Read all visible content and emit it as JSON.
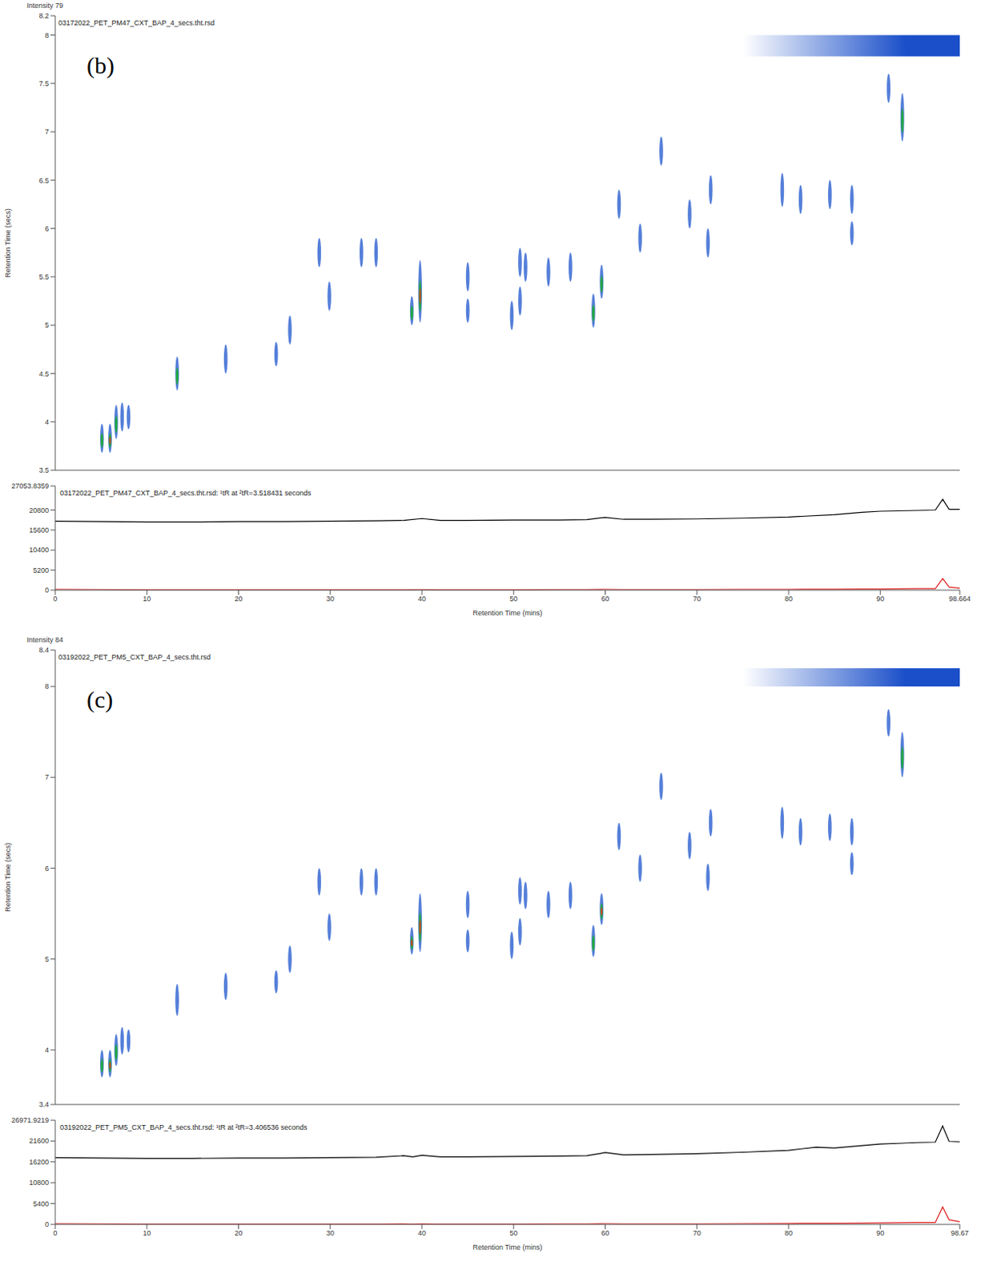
{
  "chart_data": [
    {
      "type": "contour",
      "panel": "(b)",
      "header": "Intensity 79",
      "title": "03172022_PET_PM47_CXT_BAP_4_secs.tht.rsd",
      "y_label": "Retention Time (secs)",
      "xlim": [
        0,
        98.664
      ],
      "ylim": [
        3.5,
        8.2
      ],
      "xticks": [
        0,
        10,
        20,
        30,
        40,
        50,
        60,
        70,
        80,
        90,
        98.664
      ],
      "yticks": [
        3.5,
        4,
        4.5,
        5,
        5.5,
        6,
        6.5,
        7,
        7.5,
        8,
        8.2
      ],
      "tick_labels": "y",
      "bleed": {
        "x": [
          75,
          98.664
        ],
        "y": [
          7.78,
          8.0
        ]
      },
      "peaks": [
        {
          "x": 5.1,
          "y": 3.83,
          "dy": 0.3,
          "intensity": 2
        },
        {
          "x": 5.98,
          "y": 3.83,
          "dy": 0.3,
          "intensity": 3
        },
        {
          "x": 6.65,
          "y": 4.0,
          "dy": 0.35,
          "intensity": 2
        },
        {
          "x": 7.3,
          "y": 4.05,
          "dy": 0.3,
          "intensity": 1
        },
        {
          "x": 8.0,
          "y": 4.05,
          "dy": 0.25,
          "intensity": 1
        },
        {
          "x": 13.3,
          "y": 4.5,
          "dy": 0.35,
          "intensity": 2
        },
        {
          "x": 18.6,
          "y": 4.65,
          "dy": 0.3,
          "intensity": 1
        },
        {
          "x": 24.1,
          "y": 4.7,
          "dy": 0.25,
          "intensity": 1
        },
        {
          "x": 25.6,
          "y": 4.95,
          "dy": 0.3,
          "intensity": 1
        },
        {
          "x": 28.8,
          "y": 5.75,
          "dy": 0.3,
          "intensity": 1
        },
        {
          "x": 29.9,
          "y": 5.3,
          "dy": 0.3,
          "intensity": 1
        },
        {
          "x": 33.4,
          "y": 5.75,
          "dy": 0.3,
          "intensity": 1
        },
        {
          "x": 35.0,
          "y": 5.75,
          "dy": 0.3,
          "intensity": 1
        },
        {
          "x": 38.9,
          "y": 5.15,
          "dy": 0.3,
          "intensity": 2
        },
        {
          "x": 39.8,
          "y": 5.35,
          "dy": 0.65,
          "intensity": 3
        },
        {
          "x": 45.0,
          "y": 5.5,
          "dy": 0.3,
          "intensity": 1
        },
        {
          "x": 45.0,
          "y": 5.15,
          "dy": 0.25,
          "intensity": 1
        },
        {
          "x": 49.8,
          "y": 5.1,
          "dy": 0.3,
          "intensity": 1
        },
        {
          "x": 50.7,
          "y": 5.25,
          "dy": 0.3,
          "intensity": 1
        },
        {
          "x": 50.7,
          "y": 5.65,
          "dy": 0.3,
          "intensity": 1
        },
        {
          "x": 51.3,
          "y": 5.6,
          "dy": 0.3,
          "intensity": 1
        },
        {
          "x": 53.8,
          "y": 5.55,
          "dy": 0.3,
          "intensity": 1
        },
        {
          "x": 56.2,
          "y": 5.6,
          "dy": 0.3,
          "intensity": 1
        },
        {
          "x": 58.7,
          "y": 5.15,
          "dy": 0.35,
          "intensity": 2
        },
        {
          "x": 59.6,
          "y": 5.45,
          "dy": 0.35,
          "intensity": 2
        },
        {
          "x": 61.5,
          "y": 6.25,
          "dy": 0.3,
          "intensity": 1
        },
        {
          "x": 63.8,
          "y": 5.9,
          "dy": 0.3,
          "intensity": 1
        },
        {
          "x": 66.1,
          "y": 6.8,
          "dy": 0.3,
          "intensity": 1
        },
        {
          "x": 69.2,
          "y": 6.15,
          "dy": 0.3,
          "intensity": 1
        },
        {
          "x": 71.2,
          "y": 5.85,
          "dy": 0.3,
          "intensity": 1
        },
        {
          "x": 71.5,
          "y": 6.4,
          "dy": 0.3,
          "intensity": 1
        },
        {
          "x": 79.3,
          "y": 6.4,
          "dy": 0.35,
          "intensity": 1
        },
        {
          "x": 81.3,
          "y": 6.3,
          "dy": 0.3,
          "intensity": 1
        },
        {
          "x": 84.5,
          "y": 6.35,
          "dy": 0.3,
          "intensity": 1
        },
        {
          "x": 86.9,
          "y": 6.3,
          "dy": 0.3,
          "intensity": 1
        },
        {
          "x": 86.9,
          "y": 5.95,
          "dy": 0.25,
          "intensity": 1
        },
        {
          "x": 90.9,
          "y": 7.45,
          "dy": 0.3,
          "intensity": 1
        },
        {
          "x": 92.4,
          "y": 7.15,
          "dy": 0.5,
          "intensity": 2
        }
      ]
    },
    {
      "type": "line",
      "title": "03172022_PET_PM47_CXT_BAP_4_secs.tht.rsd: ¹tR at ²tR=3.518431 seconds",
      "x_label": "Retention Time (mins)",
      "xlim": [
        0,
        98.664
      ],
      "ylim": [
        0,
        27053.8359
      ],
      "xticks": [
        0,
        10,
        20,
        30,
        40,
        50,
        60,
        70,
        80,
        90,
        98.664
      ],
      "yticks": [
        0,
        5200,
        10400,
        15600,
        20800,
        27053.8359
      ],
      "x": [
        0,
        5,
        10,
        15,
        20,
        25,
        30,
        35,
        38,
        40,
        42,
        45,
        50,
        55,
        58,
        60,
        62,
        65,
        70,
        75,
        80,
        85,
        88,
        90,
        92,
        94,
        96,
        96.8,
        97.5,
        98.664
      ],
      "series": [
        {
          "color": "#000000",
          "values": [
            17900,
            17800,
            17700,
            17700,
            17800,
            17800,
            17900,
            18000,
            18100,
            18600,
            18100,
            18100,
            18200,
            18200,
            18300,
            18900,
            18400,
            18400,
            18500,
            18700,
            19000,
            19600,
            20200,
            20500,
            20600,
            20700,
            20800,
            23600,
            21000,
            21000
          ]
        },
        {
          "color": "#e02020",
          "values": [
            200,
            150,
            100,
            100,
            100,
            100,
            100,
            100,
            100,
            150,
            100,
            100,
            100,
            150,
            150,
            200,
            150,
            150,
            150,
            200,
            200,
            250,
            300,
            300,
            350,
            400,
            400,
            3000,
            800,
            500
          ]
        }
      ]
    },
    {
      "type": "contour",
      "panel": "(c)",
      "header": "Intensity 84",
      "title": "03192022_PET_PM5_CXT_BAP_4_secs.tht.rsd",
      "y_label": "Retention Time (secs)",
      "xlim": [
        0,
        98.67
      ],
      "ylim": [
        3.4,
        8.4
      ],
      "xticks": [
        0,
        10,
        20,
        30,
        40,
        50,
        60,
        70,
        80,
        90,
        98.67
      ],
      "yticks": [
        3.4,
        4,
        5,
        6,
        7,
        8,
        8.4
      ],
      "tick_labels": "y",
      "bleed": {
        "x": [
          75,
          98.67
        ],
        "y": [
          8.0,
          8.2
        ]
      },
      "peaks": [
        {
          "x": 5.1,
          "y": 3.85,
          "dy": 0.3,
          "intensity": 2
        },
        {
          "x": 5.98,
          "y": 3.85,
          "dy": 0.3,
          "intensity": 3
        },
        {
          "x": 6.65,
          "y": 4.0,
          "dy": 0.35,
          "intensity": 2
        },
        {
          "x": 7.3,
          "y": 4.1,
          "dy": 0.3,
          "intensity": 1
        },
        {
          "x": 8.0,
          "y": 4.1,
          "dy": 0.25,
          "intensity": 1
        },
        {
          "x": 13.3,
          "y": 4.55,
          "dy": 0.35,
          "intensity": 1
        },
        {
          "x": 18.6,
          "y": 4.7,
          "dy": 0.3,
          "intensity": 1
        },
        {
          "x": 24.1,
          "y": 4.75,
          "dy": 0.25,
          "intensity": 1
        },
        {
          "x": 25.6,
          "y": 5.0,
          "dy": 0.3,
          "intensity": 1
        },
        {
          "x": 28.8,
          "y": 5.85,
          "dy": 0.3,
          "intensity": 1
        },
        {
          "x": 29.9,
          "y": 5.35,
          "dy": 0.3,
          "intensity": 1
        },
        {
          "x": 33.4,
          "y": 5.85,
          "dy": 0.3,
          "intensity": 1
        },
        {
          "x": 35.0,
          "y": 5.85,
          "dy": 0.3,
          "intensity": 1
        },
        {
          "x": 38.9,
          "y": 5.2,
          "dy": 0.3,
          "intensity": 3
        },
        {
          "x": 39.8,
          "y": 5.4,
          "dy": 0.65,
          "intensity": 3
        },
        {
          "x": 45.0,
          "y": 5.6,
          "dy": 0.3,
          "intensity": 1
        },
        {
          "x": 45.0,
          "y": 5.2,
          "dy": 0.25,
          "intensity": 1
        },
        {
          "x": 49.8,
          "y": 5.15,
          "dy": 0.3,
          "intensity": 1
        },
        {
          "x": 50.7,
          "y": 5.3,
          "dy": 0.3,
          "intensity": 1
        },
        {
          "x": 50.7,
          "y": 5.75,
          "dy": 0.3,
          "intensity": 1
        },
        {
          "x": 51.3,
          "y": 5.7,
          "dy": 0.3,
          "intensity": 1
        },
        {
          "x": 53.8,
          "y": 5.6,
          "dy": 0.3,
          "intensity": 1
        },
        {
          "x": 56.2,
          "y": 5.7,
          "dy": 0.3,
          "intensity": 1
        },
        {
          "x": 58.7,
          "y": 5.2,
          "dy": 0.35,
          "intensity": 2
        },
        {
          "x": 59.6,
          "y": 5.55,
          "dy": 0.35,
          "intensity": 3
        },
        {
          "x": 61.5,
          "y": 6.35,
          "dy": 0.3,
          "intensity": 1
        },
        {
          "x": 63.8,
          "y": 6.0,
          "dy": 0.3,
          "intensity": 1
        },
        {
          "x": 66.1,
          "y": 6.9,
          "dy": 0.3,
          "intensity": 1
        },
        {
          "x": 69.2,
          "y": 6.25,
          "dy": 0.3,
          "intensity": 1
        },
        {
          "x": 71.2,
          "y": 5.9,
          "dy": 0.3,
          "intensity": 1
        },
        {
          "x": 71.5,
          "y": 6.5,
          "dy": 0.3,
          "intensity": 1
        },
        {
          "x": 79.3,
          "y": 6.5,
          "dy": 0.35,
          "intensity": 1
        },
        {
          "x": 81.3,
          "y": 6.4,
          "dy": 0.3,
          "intensity": 1
        },
        {
          "x": 84.5,
          "y": 6.45,
          "dy": 0.3,
          "intensity": 1
        },
        {
          "x": 86.9,
          "y": 6.4,
          "dy": 0.3,
          "intensity": 1
        },
        {
          "x": 86.9,
          "y": 6.05,
          "dy": 0.25,
          "intensity": 1
        },
        {
          "x": 90.9,
          "y": 7.6,
          "dy": 0.3,
          "intensity": 1
        },
        {
          "x": 92.4,
          "y": 7.25,
          "dy": 0.5,
          "intensity": 2
        }
      ]
    },
    {
      "type": "line",
      "title": "03192022_PET_PM5_CXT_BAP_4_secs.tht.rsd: ¹tR at ²tR=3.406536 seconds",
      "x_label": "Retention Time (mins)",
      "xlim": [
        0,
        98.67
      ],
      "ylim": [
        0,
        26971.9219
      ],
      "xticks": [
        0,
        10,
        20,
        30,
        40,
        50,
        60,
        70,
        80,
        90,
        98.67
      ],
      "yticks": [
        0,
        5400,
        10800,
        16200,
        21600,
        26971.9219
      ],
      "x": [
        0,
        5,
        10,
        15,
        20,
        25,
        30,
        35,
        38,
        39,
        40,
        42,
        45,
        50,
        55,
        58,
        60,
        62,
        65,
        70,
        75,
        80,
        83,
        85,
        88,
        90,
        92,
        94,
        96,
        96.8,
        97.5,
        98.67
      ],
      "series": [
        {
          "color": "#000000",
          "values": [
            17300,
            17200,
            17100,
            17100,
            17200,
            17200,
            17300,
            17400,
            17800,
            17500,
            17900,
            17500,
            17500,
            17600,
            17700,
            17800,
            18600,
            18000,
            18100,
            18300,
            18700,
            19200,
            20000,
            19800,
            20400,
            20800,
            21000,
            21200,
            21300,
            25500,
            21500,
            21400
          ]
        },
        {
          "color": "#e02020",
          "values": [
            200,
            150,
            100,
            100,
            100,
            100,
            100,
            100,
            150,
            100,
            150,
            100,
            100,
            100,
            150,
            150,
            200,
            150,
            150,
            150,
            200,
            250,
            300,
            300,
            350,
            400,
            450,
            500,
            500,
            4500,
            1200,
            700
          ]
        }
      ]
    }
  ]
}
